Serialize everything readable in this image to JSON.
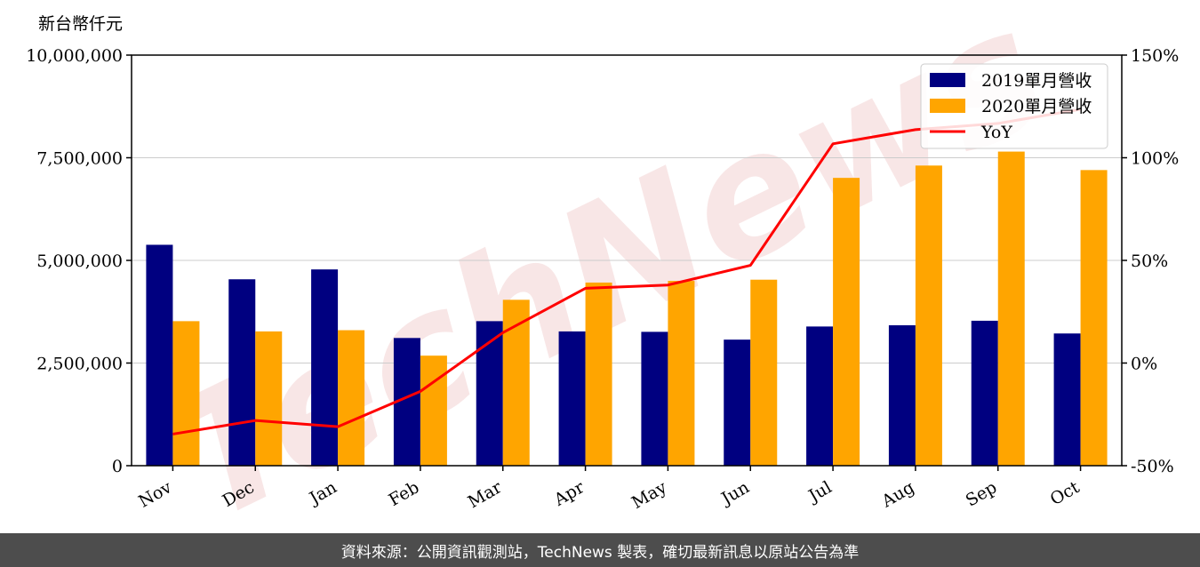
{
  "chart_data": {
    "type": "bar",
    "unit_label": "新台幣仟元",
    "categories": [
      "Nov",
      "Dec",
      "Jan",
      "Feb",
      "Mar",
      "Apr",
      "May",
      "Jun",
      "Jul",
      "Aug",
      "Sep",
      "Oct"
    ],
    "series": [
      {
        "name": "2019單月營收",
        "type": "bar",
        "axis": "left",
        "color": "#000080",
        "values": [
          5380000,
          4540000,
          4780000,
          3110000,
          3520000,
          3270000,
          3260000,
          3070000,
          3390000,
          3420000,
          3530000,
          3220000
        ]
      },
      {
        "name": "2020單月營收",
        "type": "bar",
        "axis": "left",
        "color": "#ffa500",
        "values": [
          3520000,
          3270000,
          3300000,
          2680000,
          4040000,
          4460000,
          4500000,
          4530000,
          7010000,
          7310000,
          7650000,
          7200000
        ]
      },
      {
        "name": "YoY",
        "type": "line",
        "axis": "right",
        "color": "#ff0000",
        "values": [
          -34.6,
          -28.0,
          -31.0,
          -13.8,
          14.8,
          36.4,
          38.0,
          47.6,
          106.8,
          113.7,
          116.7,
          123.6
        ]
      }
    ],
    "y_left": {
      "range": [
        0,
        10000000
      ],
      "ticks": [
        0,
        2500000,
        5000000,
        7500000,
        10000000
      ],
      "tick_labels": [
        "0",
        "2,500,000",
        "5,000,000",
        "7,500,000",
        "10,000,000"
      ]
    },
    "y_right": {
      "range": [
        -50,
        150
      ],
      "ticks": [
        -50,
        0,
        50,
        100,
        150
      ],
      "tick_labels": [
        "-50%",
        "0%",
        "50%",
        "100%",
        "150%"
      ]
    },
    "grid": "horizontal",
    "legend_position": "top-right"
  },
  "watermark": "TechNews",
  "footer": "資料來源：公開資訊觀測站，TechNews 製表，確切最新訊息以原站公告為準"
}
